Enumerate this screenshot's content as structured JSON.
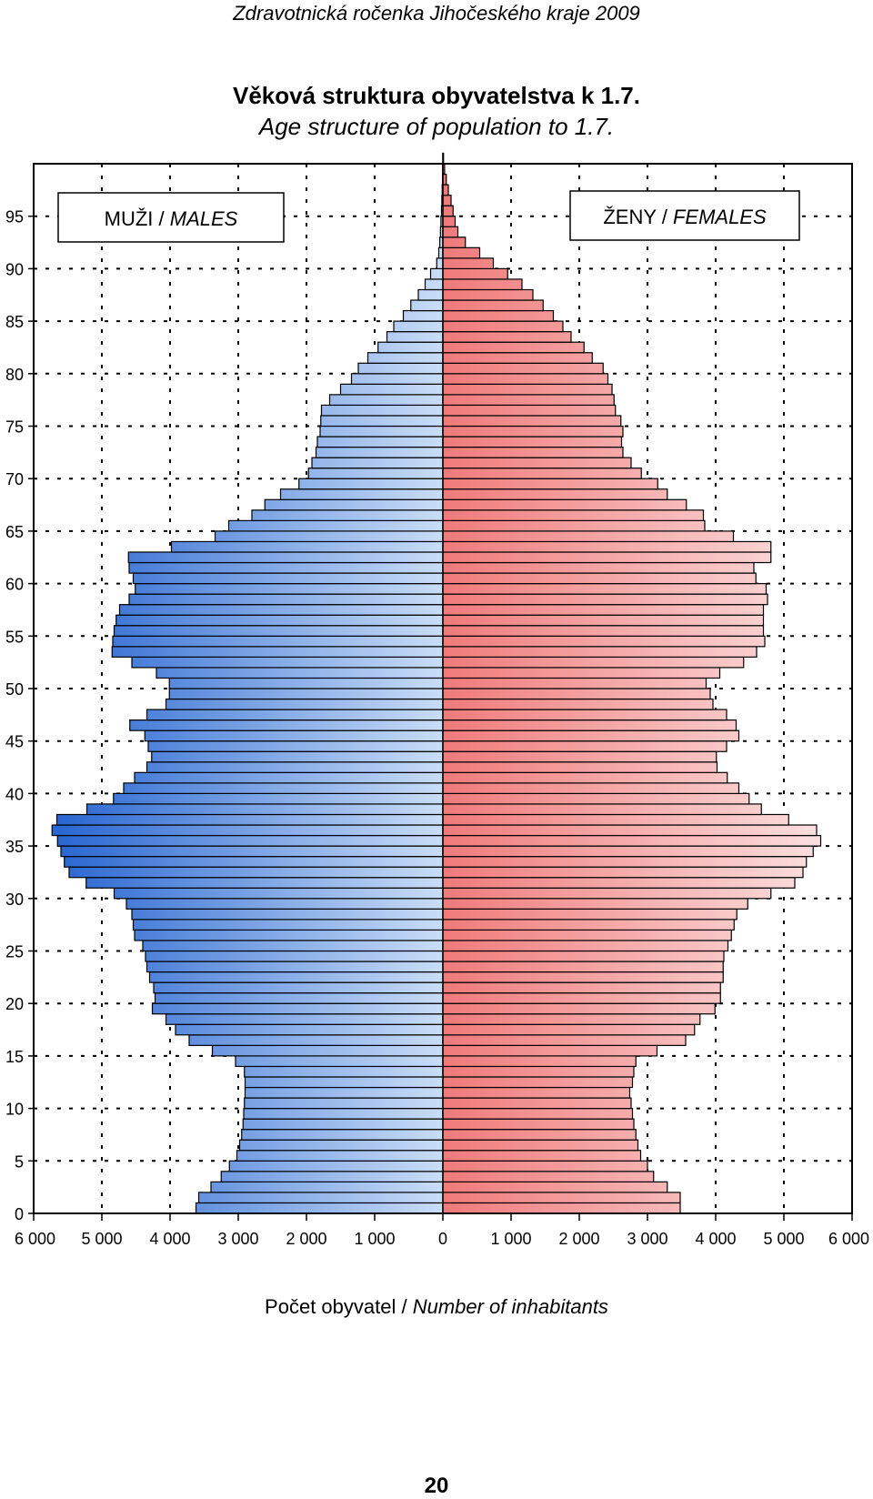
{
  "header": {
    "text": "Zdravotnická ročenka Jihočeského kraje 2009"
  },
  "title": {
    "line1": "Věková struktura obyvatelstva k 1.7.",
    "line2": "Age structure of population to 1.7."
  },
  "xlabel": {
    "normal": "Počet obyvatel / ",
    "italic": "Number of inhabitants"
  },
  "page_number": "20",
  "legend": {
    "males": {
      "normal": "MUŽI / ",
      "italic": "MALES"
    },
    "females": {
      "normal": "ŽENY / ",
      "italic": "FEMALES"
    }
  },
  "colors": {
    "male_dark": "#1f5fcf",
    "male_light": "#c9ddf7",
    "female_dark": "#f07a7a",
    "female_light": "#fde8e8"
  },
  "chart_data": {
    "type": "bar",
    "orientation": "horizontal-population-pyramid",
    "x_ticks": [
      "6 000",
      "5 000",
      "4 000",
      "3 000",
      "2 000",
      "1 000",
      "0",
      "1 000",
      "2 000",
      "3 000",
      "4 000",
      "5 000",
      "6 000"
    ],
    "y_ticks": [
      "0",
      "5",
      "10",
      "15",
      "20",
      "25",
      "30",
      "35",
      "40",
      "45",
      "50",
      "55",
      "60",
      "65",
      "70",
      "75",
      "80",
      "85",
      "90",
      "95"
    ],
    "xlim": [
      -6000,
      6000
    ],
    "ylim": [
      0,
      100
    ],
    "grid": true,
    "ages": [
      0,
      1,
      2,
      3,
      4,
      5,
      6,
      7,
      8,
      9,
      10,
      11,
      12,
      13,
      14,
      15,
      16,
      17,
      18,
      19,
      20,
      21,
      22,
      23,
      24,
      25,
      26,
      27,
      28,
      29,
      30,
      31,
      32,
      33,
      34,
      35,
      36,
      37,
      38,
      39,
      40,
      41,
      42,
      43,
      44,
      45,
      46,
      47,
      48,
      49,
      50,
      51,
      52,
      53,
      54,
      55,
      56,
      57,
      58,
      59,
      60,
      61,
      62,
      63,
      64,
      65,
      66,
      67,
      68,
      69,
      70,
      71,
      72,
      73,
      74,
      75,
      76,
      77,
      78,
      79,
      80,
      81,
      82,
      83,
      84,
      85,
      86,
      87,
      88,
      89,
      90,
      91,
      92,
      93,
      94,
      95,
      96,
      97,
      98,
      99,
      100
    ],
    "series": [
      {
        "name": "MUŽI / MALES",
        "values": [
          3620,
          3580,
          3400,
          3250,
          3130,
          3020,
          2980,
          2950,
          2930,
          2920,
          2910,
          2900,
          2900,
          2910,
          3040,
          3380,
          3720,
          3920,
          4060,
          4260,
          4220,
          4240,
          4300,
          4340,
          4360,
          4400,
          4520,
          4540,
          4560,
          4640,
          4820,
          5230,
          5480,
          5550,
          5600,
          5650,
          5730,
          5660,
          5220,
          4830,
          4680,
          4520,
          4340,
          4270,
          4320,
          4370,
          4590,
          4340,
          4060,
          4010,
          4010,
          4200,
          4560,
          4850,
          4840,
          4820,
          4790,
          4740,
          4600,
          4510,
          4540,
          4600,
          4610,
          3980,
          3340,
          3140,
          2800,
          2610,
          2380,
          2110,
          1970,
          1920,
          1860,
          1840,
          1800,
          1790,
          1780,
          1660,
          1500,
          1340,
          1240,
          1100,
          950,
          820,
          720,
          580,
          470,
          360,
          260,
          180,
          90,
          60,
          45,
          35,
          28,
          20,
          15,
          10,
          5,
          3,
          2
        ]
      },
      {
        "name": "ŽENY / FEMALES",
        "values": [
          3480,
          3480,
          3290,
          3090,
          3000,
          2900,
          2860,
          2830,
          2800,
          2780,
          2760,
          2740,
          2780,
          2800,
          2830,
          3140,
          3560,
          3690,
          3770,
          3990,
          4070,
          4070,
          4110,
          4110,
          4120,
          4180,
          4230,
          4270,
          4310,
          4470,
          4810,
          5160,
          5280,
          5330,
          5430,
          5540,
          5480,
          5070,
          4670,
          4490,
          4340,
          4170,
          4020,
          4010,
          4160,
          4340,
          4300,
          4160,
          3960,
          3920,
          3860,
          4060,
          4410,
          4600,
          4720,
          4700,
          4700,
          4700,
          4760,
          4740,
          4590,
          4560,
          4810,
          4810,
          4260,
          3840,
          3820,
          3570,
          3290,
          3150,
          2910,
          2760,
          2640,
          2620,
          2640,
          2610,
          2530,
          2510,
          2480,
          2420,
          2350,
          2190,
          2070,
          1880,
          1760,
          1620,
          1470,
          1320,
          1160,
          950,
          740,
          540,
          330,
          220,
          180,
          150,
          120,
          80,
          50,
          25,
          10
        ]
      }
    ]
  }
}
